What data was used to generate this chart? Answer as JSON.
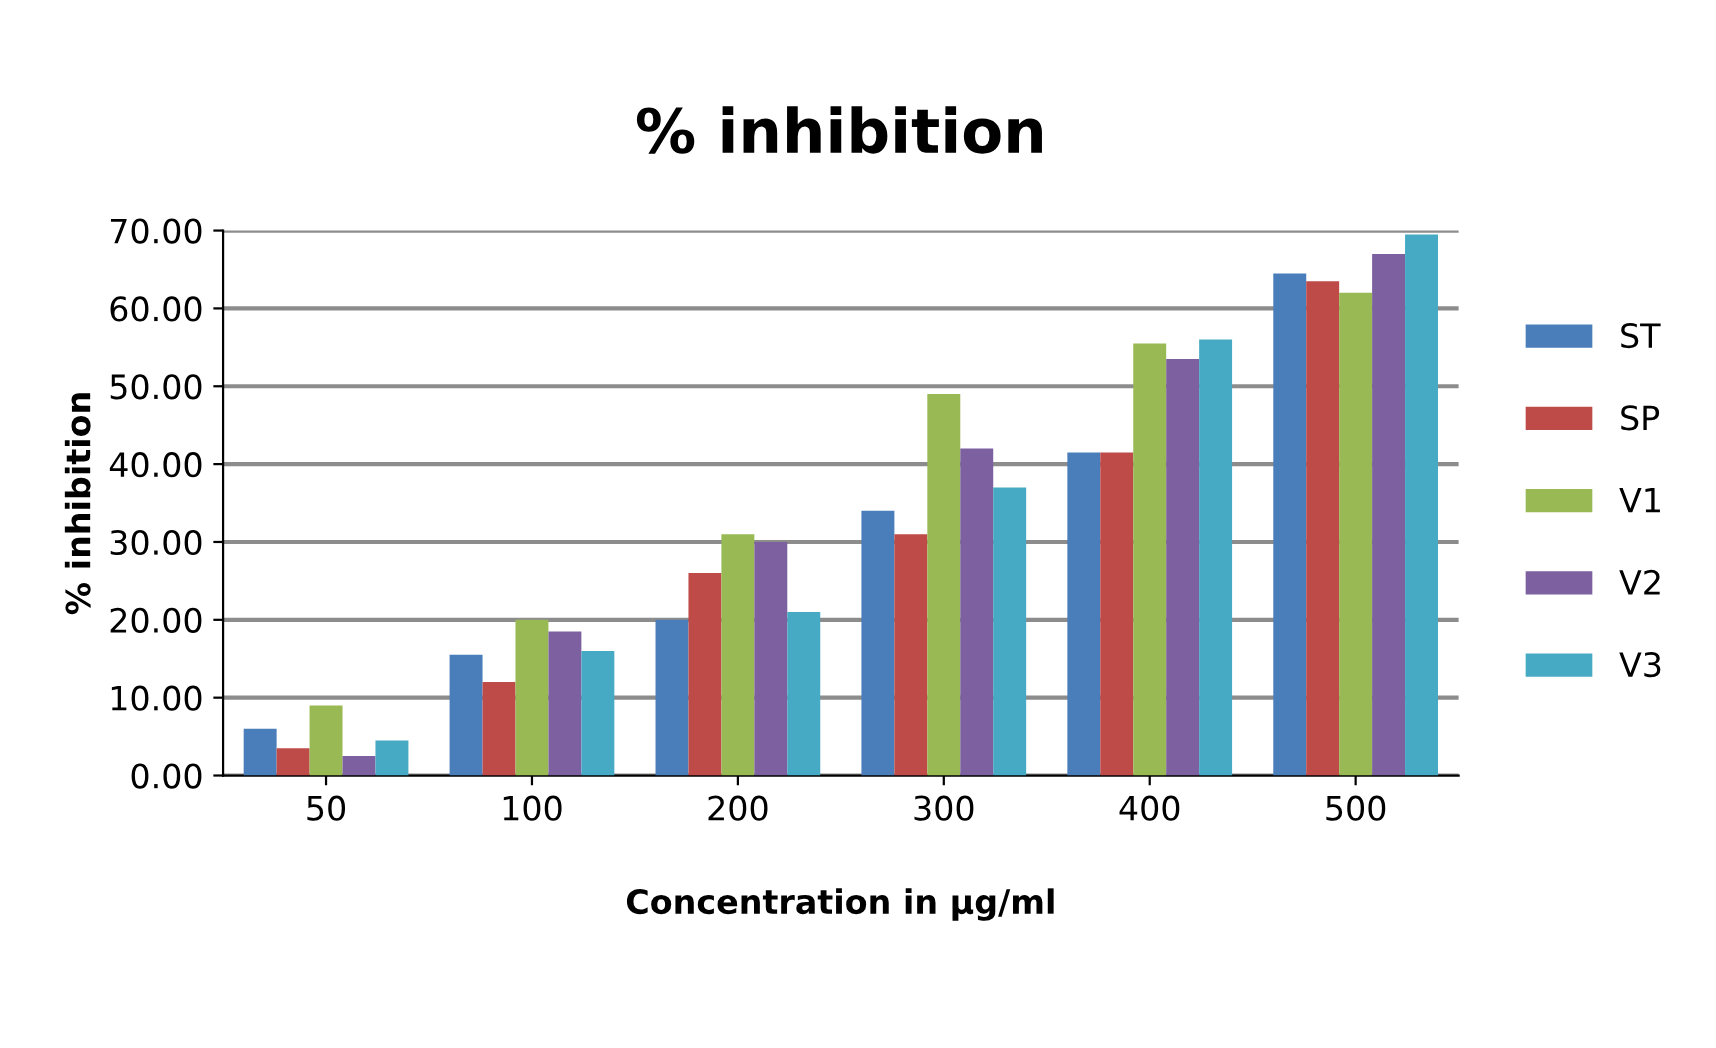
{
  "chart_data": {
    "type": "bar",
    "title": "% inhibition",
    "xlabel": "Concentration in µg/ml",
    "ylabel": "% inhibition",
    "categories": [
      "50",
      "100",
      "200",
      "300",
      "400",
      "500"
    ],
    "series": [
      {
        "name": "ST",
        "color": "#4a7ebb",
        "values": [
          6,
          15.5,
          20,
          34,
          41.5,
          64.5
        ]
      },
      {
        "name": "SP",
        "color": "#be4b48",
        "values": [
          3.5,
          12,
          26,
          31,
          41.5,
          63.5
        ]
      },
      {
        "name": "V1",
        "color": "#98b954",
        "values": [
          9,
          20,
          31,
          49,
          55.5,
          62
        ]
      },
      {
        "name": "V2",
        "color": "#7d60a0",
        "values": [
          2.5,
          18.5,
          30,
          42,
          53.5,
          67
        ]
      },
      {
        "name": "V3",
        "color": "#46aac5",
        "values": [
          4.5,
          16,
          21,
          37,
          56,
          69.5
        ]
      }
    ],
    "ylim": [
      0,
      70
    ],
    "yticks": [
      {
        "value": 0,
        "label": "0.00"
      },
      {
        "value": 10,
        "label": "10.00"
      },
      {
        "value": 20,
        "label": "20.00"
      },
      {
        "value": 30,
        "label": "30.00"
      },
      {
        "value": 40,
        "label": "40.00"
      },
      {
        "value": 50,
        "label": "50.00"
      },
      {
        "value": 60,
        "label": "60.00"
      },
      {
        "value": 70,
        "label": "70.00"
      }
    ],
    "grid": "y",
    "legend": "right"
  }
}
